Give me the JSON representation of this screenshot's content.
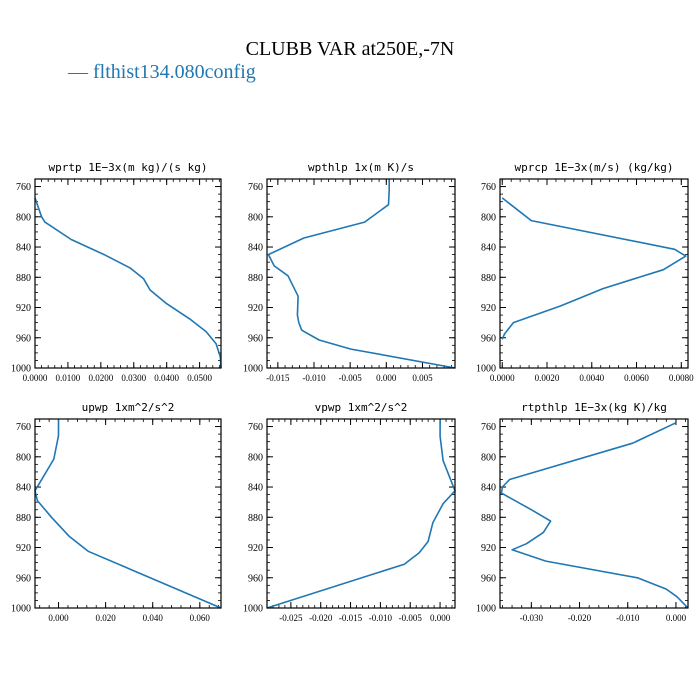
{
  "figure": {
    "title": "CLUBB VAR at250E,-7N",
    "legend_label": "— flthist134.080config",
    "series_color": "#1f77b4"
  },
  "chart_data": [
    {
      "type": "line",
      "title": "wprtp  1E−3x(m kg)/(s kg)",
      "xlim": [
        0.0,
        0.0565
      ],
      "ylim": [
        1000,
        750
      ],
      "xticks": [
        0.0,
        0.01,
        0.02,
        0.03,
        0.04,
        0.05
      ],
      "xtick_labels": [
        "0.0000",
        "0.0100",
        "0.0200",
        "0.0300",
        "0.0400",
        "0.0500"
      ],
      "yticks": [
        760,
        800,
        840,
        880,
        920,
        960,
        1000
      ],
      "series": [
        {
          "x": [
            0.0,
            0.002,
            0.003,
            0.011,
            0.021,
            0.029,
            0.033,
            0.035,
            0.04,
            0.047,
            0.052,
            0.055,
            0.0563,
            0.0565
          ],
          "y": [
            775,
            800,
            807,
            830,
            850,
            868,
            882,
            897,
            915,
            935,
            952,
            968,
            985,
            1000
          ]
        }
      ]
    },
    {
      "type": "line",
      "title": "wpthlp  1x(m K)/s",
      "xlim": [
        -0.0165,
        0.0095
      ],
      "ylim": [
        1000,
        750
      ],
      "xticks": [
        -0.015,
        -0.01,
        -0.005,
        0.0,
        0.005
      ],
      "xtick_labels": [
        "-0.015",
        "-0.010",
        "-0.005",
        "0.000",
        "0.005"
      ],
      "yticks": [
        760,
        800,
        840,
        880,
        920,
        960,
        1000
      ],
      "series": [
        {
          "x": [
            0.0004,
            0.0004,
            0.0003,
            -0.003,
            -0.0114,
            -0.0163,
            -0.0155,
            -0.0136,
            -0.0122,
            -0.0123,
            -0.0121,
            -0.0117,
            -0.0093,
            -0.0049,
            0.0095
          ],
          "y": [
            750,
            765,
            784,
            807,
            828,
            850,
            865,
            878,
            905,
            930,
            940,
            950,
            963,
            975,
            1000
          ]
        }
      ]
    },
    {
      "type": "line",
      "title": "wprcp  1E−3x(m/s) (kg/kg)",
      "xlim": [
        -0.0001,
        0.0083
      ],
      "ylim": [
        1000,
        750
      ],
      "xticks": [
        0.0,
        0.002,
        0.004,
        0.006,
        0.008
      ],
      "xtick_labels": [
        "0.0000",
        "0.0020",
        "0.0040",
        "0.0060",
        "0.0080"
      ],
      "yticks": [
        760,
        800,
        840,
        880,
        920,
        960,
        1000
      ],
      "series": [
        {
          "x": [
            0.0,
            0.0013,
            0.0077,
            0.0082,
            0.0072,
            0.0045,
            0.0026,
            0.0005,
            0.0001,
            0.0
          ],
          "y": [
            775,
            805,
            843,
            852,
            870,
            895,
            918,
            940,
            955,
            962
          ]
        }
      ]
    },
    {
      "type": "line",
      "title": "upwp  1xm^2/s^2",
      "xlim": [
        -0.01,
        0.069
      ],
      "ylim": [
        1000,
        750
      ],
      "xticks": [
        0.0,
        0.02,
        0.04,
        0.06
      ],
      "xtick_labels": [
        "0.000",
        "0.020",
        "0.040",
        "0.060"
      ],
      "yticks": [
        760,
        800,
        840,
        880,
        920,
        960,
        1000
      ],
      "series": [
        {
          "x": [
            0.0,
            0.0,
            -0.002,
            -0.01,
            -0.009,
            -0.003,
            0.0045,
            0.0126,
            0.069
          ],
          "y": [
            750,
            772,
            803,
            845,
            858,
            880,
            905,
            925,
            1000
          ]
        }
      ]
    },
    {
      "type": "line",
      "title": "vpwp  1xm^2/s^2",
      "xlim": [
        -0.029,
        0.0025
      ],
      "ylim": [
        1000,
        750
      ],
      "xticks": [
        -0.025,
        -0.02,
        -0.015,
        -0.01,
        -0.005,
        0.0
      ],
      "xtick_labels": [
        "-0.025",
        "-0.020",
        "-0.015",
        "-0.010",
        "-0.005",
        "0.000"
      ],
      "yticks": [
        760,
        800,
        840,
        880,
        920,
        960,
        1000
      ],
      "series": [
        {
          "x": [
            0.0,
            0.0,
            0.0005,
            0.0025,
            0.0005,
            -0.0012,
            -0.002,
            -0.0035,
            -0.006,
            -0.029
          ],
          "y": [
            750,
            773,
            805,
            845,
            862,
            887,
            912,
            927,
            942,
            1000
          ]
        }
      ]
    },
    {
      "type": "line",
      "title": "rtpthlp  1E−3x(kg K)/kg",
      "xlim": [
        -0.0365,
        0.0025
      ],
      "ylim": [
        1000,
        750
      ],
      "xticks": [
        -0.03,
        -0.02,
        -0.01,
        0.0
      ],
      "xtick_labels": [
        "-0.030",
        "-0.020",
        "-0.010",
        "0.000"
      ],
      "yticks": [
        760,
        800,
        840,
        880,
        920,
        960,
        1000
      ],
      "series": [
        {
          "x": [
            0.0,
            -0.009,
            -0.0345,
            -0.036,
            -0.0362,
            -0.03,
            -0.026,
            -0.0275,
            -0.031,
            -0.034,
            -0.027,
            -0.008,
            -0.002,
            0.0002,
            0.0025
          ],
          "y": [
            755,
            782,
            830,
            840,
            848,
            870,
            885,
            900,
            915,
            923,
            938,
            960,
            975,
            985,
            1000
          ]
        }
      ]
    }
  ]
}
